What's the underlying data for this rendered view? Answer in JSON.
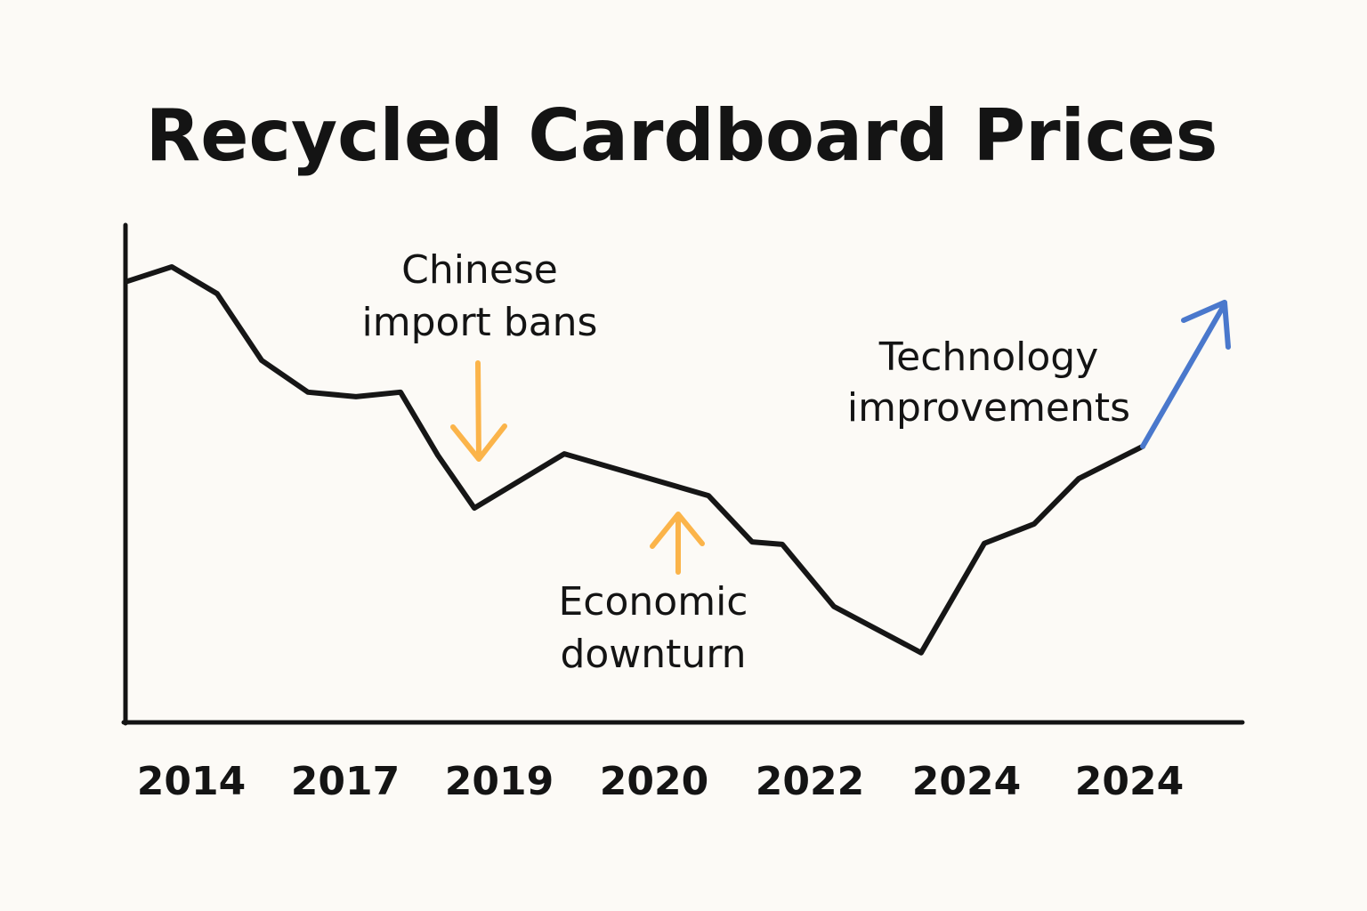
{
  "chart_data": {
    "type": "line",
    "title": "Recycled Cardboard Prices",
    "xlabel": "",
    "ylabel": "",
    "x_tick_labels": [
      "2014",
      "2017",
      "2019",
      "2020",
      "2022",
      "2024",
      "2024"
    ],
    "ylim": [
      0,
      100
    ],
    "grid": false,
    "y_ticks_shown": false,
    "series": [
      {
        "values": [
          88.7,
          91.6,
          86.2,
          72.8,
          66.4,
          65.5,
          66.4,
          53.7,
          43.1,
          54.0,
          45.6,
          36.3,
          35.8,
          23.3,
          14.0,
          36.0,
          39.9,
          49.0,
          55.5
        ],
        "color": "#161616"
      },
      {
        "role": "trend-arrow",
        "values": [
          55.5,
          84.1
        ],
        "color": "#4a78cc"
      }
    ],
    "annotations": [
      {
        "lines": [
          "Chinese",
          "import bans"
        ],
        "arrow": "down",
        "arrow_color": "#fbb44a"
      },
      {
        "lines": [
          "Economic",
          "downturn"
        ],
        "arrow": "up",
        "arrow_color": "#fbb44a"
      },
      {
        "lines": [
          "Technology",
          "improvements"
        ],
        "arrow": "up-right",
        "arrow_color": "#4a78cc"
      }
    ]
  }
}
